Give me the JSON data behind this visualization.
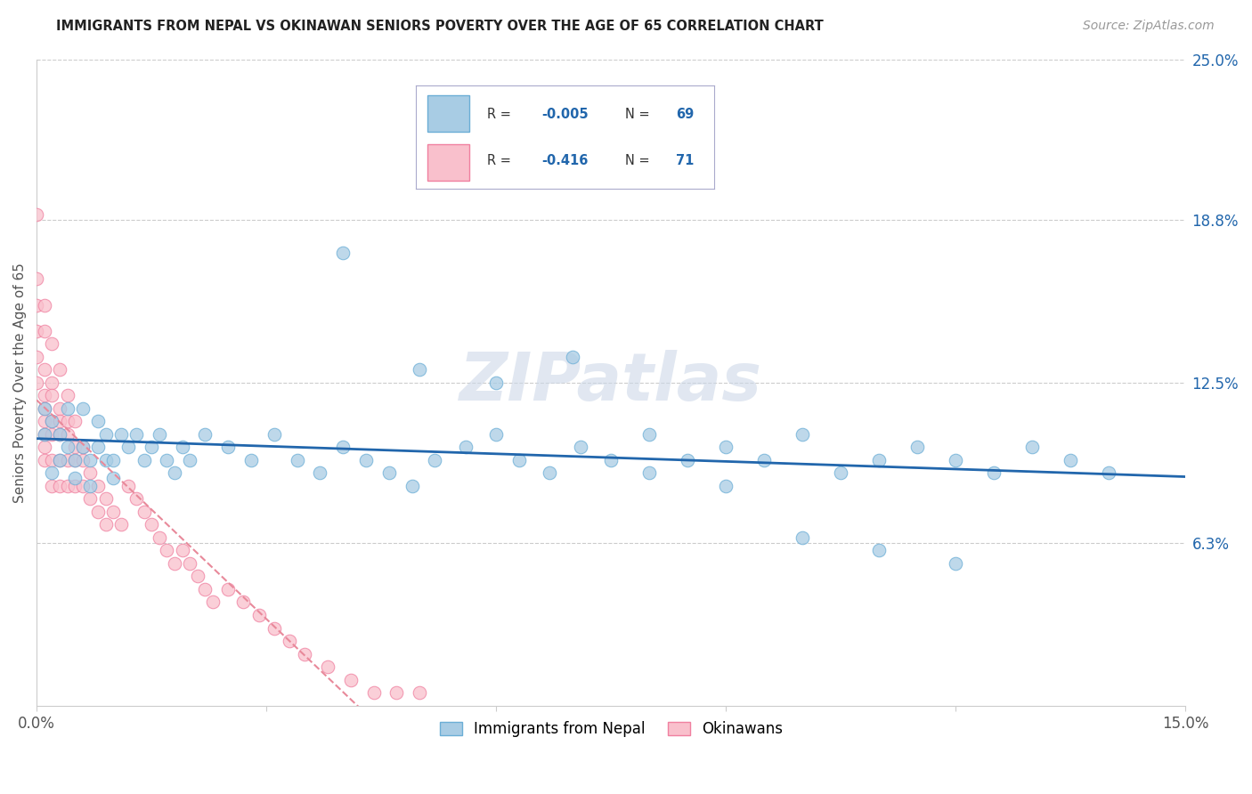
{
  "title": "IMMIGRANTS FROM NEPAL VS OKINAWAN SENIORS POVERTY OVER THE AGE OF 65 CORRELATION CHART",
  "source": "Source: ZipAtlas.com",
  "ylabel": "Seniors Poverty Over the Age of 65",
  "xlim": [
    0.0,
    0.15
  ],
  "ylim": [
    0.0,
    0.25
  ],
  "ytick_right_labels": [
    "25.0%",
    "18.8%",
    "12.5%",
    "6.3%"
  ],
  "ytick_right_values": [
    0.25,
    0.188,
    0.125,
    0.063
  ],
  "legend_labels": [
    "Immigrants from Nepal",
    "Okinawans"
  ],
  "nepal_R": "-0.005",
  "nepal_N": "69",
  "okinawa_R": "-0.416",
  "okinawa_N": "71",
  "nepal_color": "#a8cce4",
  "nepal_edge": "#6baed6",
  "okinawa_color": "#f9c0cc",
  "okinawa_edge": "#f080a0",
  "trend_nepal_color": "#2166ac",
  "trend_okinawa_color": "#e8899a",
  "watermark": "ZIPatlas",
  "nepal_x": [
    0.001,
    0.001,
    0.002,
    0.002,
    0.003,
    0.003,
    0.004,
    0.004,
    0.005,
    0.005,
    0.006,
    0.006,
    0.007,
    0.007,
    0.008,
    0.008,
    0.009,
    0.009,
    0.01,
    0.01,
    0.011,
    0.012,
    0.013,
    0.014,
    0.015,
    0.016,
    0.017,
    0.018,
    0.019,
    0.02,
    0.022,
    0.025,
    0.028,
    0.031,
    0.034,
    0.037,
    0.04,
    0.043,
    0.046,
    0.049,
    0.052,
    0.056,
    0.06,
    0.063,
    0.067,
    0.071,
    0.075,
    0.08,
    0.085,
    0.09,
    0.095,
    0.1,
    0.105,
    0.11,
    0.115,
    0.12,
    0.125,
    0.13,
    0.135,
    0.14,
    0.04,
    0.05,
    0.06,
    0.07,
    0.08,
    0.09,
    0.1,
    0.11,
    0.12
  ],
  "nepal_y": [
    0.105,
    0.115,
    0.09,
    0.11,
    0.095,
    0.105,
    0.1,
    0.115,
    0.088,
    0.095,
    0.1,
    0.115,
    0.085,
    0.095,
    0.1,
    0.11,
    0.095,
    0.105,
    0.088,
    0.095,
    0.105,
    0.1,
    0.105,
    0.095,
    0.1,
    0.105,
    0.095,
    0.09,
    0.1,
    0.095,
    0.105,
    0.1,
    0.095,
    0.105,
    0.095,
    0.09,
    0.1,
    0.095,
    0.09,
    0.085,
    0.095,
    0.1,
    0.105,
    0.095,
    0.09,
    0.1,
    0.095,
    0.09,
    0.095,
    0.1,
    0.095,
    0.105,
    0.09,
    0.095,
    0.1,
    0.095,
    0.09,
    0.1,
    0.095,
    0.09,
    0.175,
    0.13,
    0.125,
    0.135,
    0.105,
    0.085,
    0.065,
    0.06,
    0.055
  ],
  "okinawa_x": [
    0.0,
    0.0,
    0.0,
    0.0,
    0.0,
    0.001,
    0.001,
    0.001,
    0.001,
    0.001,
    0.001,
    0.001,
    0.001,
    0.002,
    0.002,
    0.002,
    0.002,
    0.002,
    0.002,
    0.003,
    0.003,
    0.003,
    0.003,
    0.003,
    0.004,
    0.004,
    0.004,
    0.004,
    0.005,
    0.005,
    0.005,
    0.006,
    0.006,
    0.007,
    0.007,
    0.008,
    0.008,
    0.009,
    0.009,
    0.01,
    0.011,
    0.012,
    0.013,
    0.014,
    0.015,
    0.016,
    0.017,
    0.018,
    0.019,
    0.02,
    0.021,
    0.022,
    0.023,
    0.025,
    0.027,
    0.029,
    0.031,
    0.033,
    0.035,
    0.038,
    0.041,
    0.044,
    0.047,
    0.05,
    0.0,
    0.001,
    0.002,
    0.003,
    0.004,
    0.005,
    0.006
  ],
  "okinawa_y": [
    0.19,
    0.155,
    0.145,
    0.135,
    0.125,
    0.13,
    0.12,
    0.115,
    0.11,
    0.105,
    0.1,
    0.095,
    0.145,
    0.125,
    0.12,
    0.11,
    0.105,
    0.095,
    0.085,
    0.115,
    0.11,
    0.105,
    0.095,
    0.085,
    0.11,
    0.105,
    0.095,
    0.085,
    0.1,
    0.095,
    0.085,
    0.095,
    0.085,
    0.09,
    0.08,
    0.085,
    0.075,
    0.08,
    0.07,
    0.075,
    0.07,
    0.085,
    0.08,
    0.075,
    0.07,
    0.065,
    0.06,
    0.055,
    0.06,
    0.055,
    0.05,
    0.045,
    0.04,
    0.045,
    0.04,
    0.035,
    0.03,
    0.025,
    0.02,
    0.015,
    0.01,
    0.005,
    0.005,
    0.005,
    0.165,
    0.155,
    0.14,
    0.13,
    0.12,
    0.11,
    0.1
  ]
}
